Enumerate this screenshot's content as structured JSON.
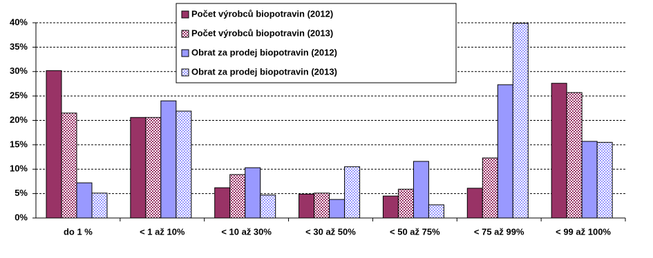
{
  "chart_data": {
    "type": "bar",
    "categories": [
      "do 1 %",
      "< 1 až 10%",
      "< 10 až 30%",
      "< 30 až 50%",
      "< 50 až 75%",
      "< 75 až 99%",
      "< 99 až 100%"
    ],
    "series": [
      {
        "name": "Počet výrobců biopotravin (2012)",
        "color": "#993366",
        "hatched": false,
        "values": [
          30.2,
          20.6,
          6.2,
          4.9,
          4.5,
          6.1,
          27.6
        ]
      },
      {
        "name": "Počet výrobců biopotravin (2013)",
        "color": "#993366",
        "hatched": true,
        "values": [
          21.5,
          20.6,
          8.9,
          5.1,
          5.9,
          12.3,
          25.7
        ]
      },
      {
        "name": "Obrat za prodej biopotravin (2012)",
        "color": "#9999ff",
        "hatched": false,
        "values": [
          7.2,
          24.0,
          10.3,
          3.8,
          11.6,
          27.3,
          15.7
        ]
      },
      {
        "name": "Obrat za prodej biopotravin (2013)",
        "color": "#9999ff",
        "hatched": true,
        "values": [
          5.1,
          21.9,
          4.7,
          10.5,
          2.7,
          39.9,
          15.5
        ]
      }
    ],
    "ylim": [
      0,
      40
    ],
    "yticks": [
      {
        "value": 0,
        "label": "0%"
      },
      {
        "value": 5,
        "label": "5%"
      },
      {
        "value": 10,
        "label": "10%"
      },
      {
        "value": 15,
        "label": "15%"
      },
      {
        "value": 20,
        "label": "20%"
      },
      {
        "value": 25,
        "label": "25%"
      },
      {
        "value": 30,
        "label": "30%"
      },
      {
        "value": 35,
        "label": "35%"
      },
      {
        "value": 40,
        "label": "40%"
      }
    ],
    "grid": true,
    "legend": "top"
  }
}
